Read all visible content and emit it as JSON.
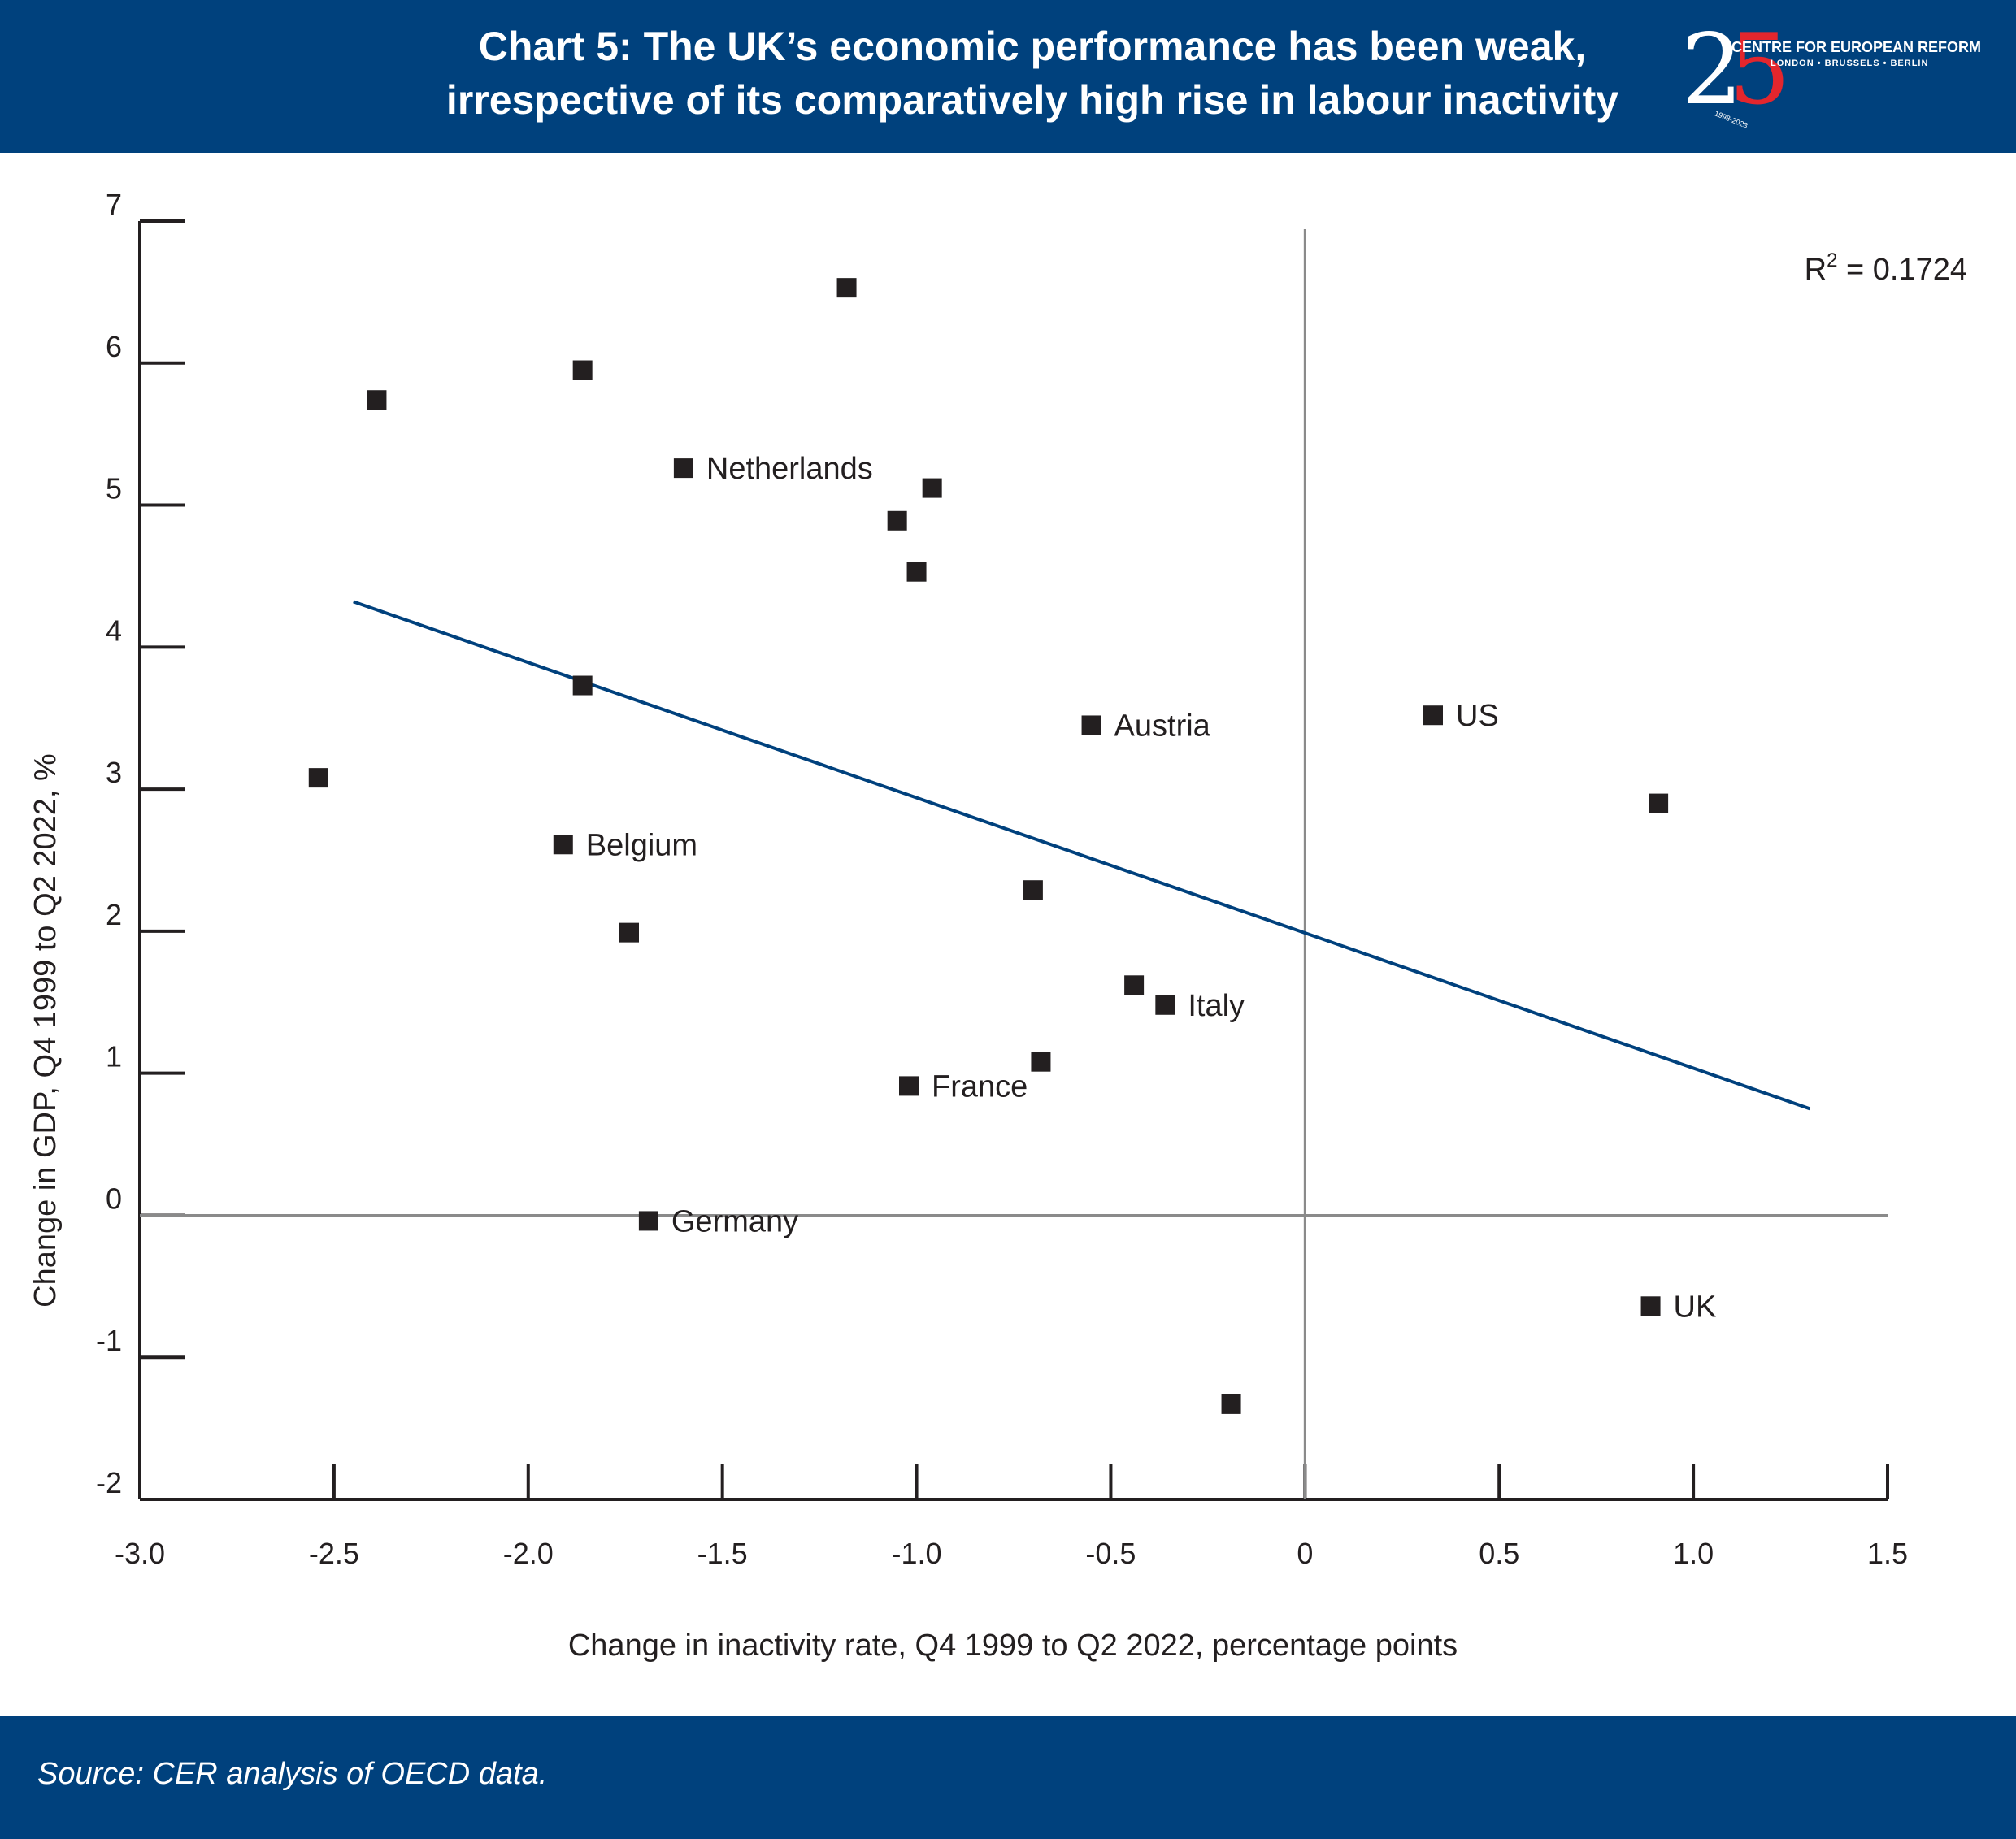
{
  "header": {
    "title_line1": "Chart 5: The UK’s economic performance has been weak,",
    "title_line2": "irrespective of its comparatively high rise in labour inactivity",
    "bg_color": "#00417d"
  },
  "logo": {
    "number_2": "2",
    "number_5": "5",
    "name": "CENTRE FOR EUROPEAN REFORM",
    "cities": "LONDON • BRUSSELS • BERLIN",
    "years": "1998-2023"
  },
  "footer": {
    "source": "Source: CER analysis of OECD data."
  },
  "chart_data": {
    "type": "scatter",
    "xlabel": "Change in inactivity rate, Q4 1999 to Q2 2022, percentage points",
    "ylabel": "Change in GDP, Q4 1999 to Q2 2022, %",
    "xlim": [
      -3.0,
      1.5
    ],
    "ylim": [
      -2,
      7
    ],
    "x_ticks": [
      -3.0,
      -2.5,
      -2.0,
      -1.5,
      -1.0,
      -0.5,
      0,
      0.5,
      1.0,
      1.5
    ],
    "x_tick_labels": [
      "-3.0",
      "-2.5",
      "-2.0",
      "-1.5",
      "-1.0",
      "-0.5",
      "0",
      "0.5",
      "1.0",
      "1.5"
    ],
    "y_ticks": [
      7,
      6,
      5,
      4,
      3,
      2,
      1,
      0,
      -1,
      -2
    ],
    "y_tick_labels": [
      "7",
      "6",
      "5",
      "4",
      "3",
      "2",
      "1",
      "0",
      "-1",
      "-2"
    ],
    "annotation": "R² = 0.1724",
    "grid": false,
    "marker_color": "#231f20",
    "trendline_color": "#00417d",
    "trendline": {
      "x": [
        -2.45,
        1.3
      ],
      "y": [
        4.32,
        0.75
      ]
    },
    "points": [
      {
        "x": -1.18,
        "y": 6.53,
        "label": ""
      },
      {
        "x": -1.86,
        "y": 5.95,
        "label": ""
      },
      {
        "x": -2.39,
        "y": 5.74,
        "label": ""
      },
      {
        "x": -1.6,
        "y": 5.26,
        "label": "Netherlands"
      },
      {
        "x": -0.96,
        "y": 5.12,
        "label": ""
      },
      {
        "x": -1.05,
        "y": 4.89,
        "label": ""
      },
      {
        "x": -1.0,
        "y": 4.53,
        "label": ""
      },
      {
        "x": -1.86,
        "y": 3.73,
        "label": ""
      },
      {
        "x": -0.55,
        "y": 3.45,
        "label": "Austria"
      },
      {
        "x": 0.33,
        "y": 3.52,
        "label": "US"
      },
      {
        "x": -2.54,
        "y": 3.08,
        "label": ""
      },
      {
        "x": 0.91,
        "y": 2.9,
        "label": ""
      },
      {
        "x": -1.91,
        "y": 2.61,
        "label": "Belgium"
      },
      {
        "x": -0.7,
        "y": 2.29,
        "label": ""
      },
      {
        "x": -1.74,
        "y": 1.99,
        "label": ""
      },
      {
        "x": -0.44,
        "y": 1.62,
        "label": ""
      },
      {
        "x": -0.36,
        "y": 1.48,
        "label": "Italy"
      },
      {
        "x": -0.68,
        "y": 1.08,
        "label": ""
      },
      {
        "x": -1.02,
        "y": 0.91,
        "label": "France"
      },
      {
        "x": -1.69,
        "y": -0.04,
        "label": "Germany"
      },
      {
        "x": 0.89,
        "y": -0.64,
        "label": "UK"
      },
      {
        "x": -0.19,
        "y": -1.33,
        "label": ""
      }
    ]
  }
}
